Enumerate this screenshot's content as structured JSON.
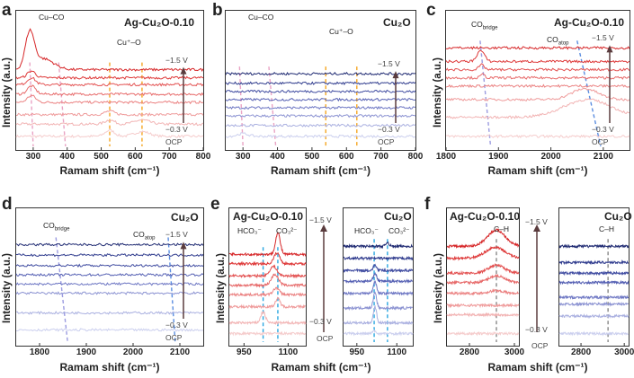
{
  "labels": {
    "ylabel": "Intensity (a.u.)",
    "xlabel": "Ramam shift (cm⁻¹)",
    "top_potential": "−1.5 V",
    "bottom_potential": "−0.3 V",
    "ocp": "OCP"
  },
  "colors": {
    "red": [
      "#f5cccc",
      "#f2b4b4",
      "#ef9b9b",
      "#eb8282",
      "#e76a6a",
      "#e35151",
      "#de3a3a",
      "#d62628"
    ],
    "blue": [
      "#cbcfee",
      "#aab0e0",
      "#8c93d2",
      "#6f78c4",
      "#5661b4",
      "#424ea2",
      "#303c8e",
      "#1f2a72"
    ],
    "arrow": "#5a3c3e"
  },
  "chart_data": [
    {
      "id": "a",
      "letter": "a",
      "type": "line",
      "title": "Ag-Cu₂O-0.10",
      "xlim": [
        250,
        800
      ],
      "ylim": [
        0,
        9
      ],
      "xticks": [
        300,
        400,
        500,
        600,
        700,
        800
      ],
      "palette": "red",
      "annotations": [
        {
          "main": "Cu–CO",
          "sub": ""
        },
        {
          "main": "Cu⁺–O",
          "sub": ""
        }
      ],
      "guides": [
        {
          "top": 290,
          "bottom": 300,
          "color": "#e9a3c4"
        },
        {
          "top": 375,
          "bottom": 395,
          "color": "#e9a3c4"
        },
        {
          "top": 525,
          "bottom": 525,
          "color": "#f5a623"
        },
        {
          "top": 620,
          "bottom": 620,
          "color": "#f5a623"
        }
      ],
      "series": [
        {
          "level": 1.0,
          "peaks": [
            [
              525,
              0.45,
              14
            ],
            [
              620,
              0.35,
              22
            ]
          ]
        },
        {
          "level": 1.9,
          "peaks": [
            [
              525,
              0.3,
              14
            ],
            [
              620,
              0.3,
              22
            ]
          ]
        },
        {
          "level": 2.6,
          "peaks": [
            [
              525,
              0.25,
              14
            ]
          ]
        },
        {
          "level": 3.5,
          "peaks": [
            [
              295,
              0.5,
              12
            ]
          ]
        },
        {
          "level": 4.1,
          "peaks": [
            [
              295,
              0.6,
              12
            ]
          ]
        },
        {
          "level": 4.8,
          "peaks": [
            [
              295,
              0.5,
              12
            ]
          ]
        },
        {
          "level": 5.3,
          "peaks": [
            [
              295,
              0.5,
              12
            ]
          ]
        },
        {
          "level": 5.9,
          "peaks": [
            [
              290,
              2.6,
              13
            ],
            [
              330,
              0.8,
              30
            ]
          ]
        }
      ]
    },
    {
      "id": "b",
      "letter": "b",
      "type": "line",
      "title": "Cu₂O",
      "xlim": [
        250,
        800
      ],
      "ylim": [
        0,
        9
      ],
      "xticks": [
        300,
        400,
        500,
        600,
        700,
        800
      ],
      "palette": "blue",
      "annotations": [
        {
          "main": "Cu–CO",
          "sub": ""
        },
        {
          "main": "Cu⁺–O",
          "sub": ""
        }
      ],
      "guides": [
        {
          "top": 290,
          "bottom": 300,
          "color": "#e9a3c4"
        },
        {
          "top": 375,
          "bottom": 395,
          "color": "#e9a3c4"
        },
        {
          "top": 540,
          "bottom": 540,
          "color": "#f5a623"
        },
        {
          "top": 630,
          "bottom": 630,
          "color": "#f5a623"
        }
      ],
      "series": [
        {
          "level": 1.0,
          "peaks": [
            [
              300,
              0.2,
              15
            ]
          ]
        },
        {
          "level": 1.8,
          "peaks": []
        },
        {
          "level": 2.5,
          "peaks": []
        },
        {
          "level": 3.1,
          "peaks": []
        },
        {
          "level": 3.7,
          "peaks": []
        },
        {
          "level": 4.3,
          "peaks": []
        },
        {
          "level": 4.9,
          "peaks": []
        },
        {
          "level": 5.6,
          "peaks": []
        }
      ]
    },
    {
      "id": "c",
      "letter": "c",
      "type": "line",
      "title": "Ag-Cu₂O-0.10",
      "xlim": [
        1800,
        2150
      ],
      "ylim": [
        0,
        9
      ],
      "xticks": [
        1800,
        1900,
        2000,
        2100
      ],
      "palette": "red",
      "annotations": [
        {
          "main": "CO",
          "sub": "bridge"
        },
        {
          "main": "CO",
          "sub": "atop"
        }
      ],
      "guides": [
        {
          "top": 1865,
          "bottom": 1885,
          "color": "#9b9be0"
        },
        {
          "top": 2050,
          "bottom": 2095,
          "color": "#5b8de0"
        }
      ],
      "series": [
        {
          "level": 1.0,
          "peaks": []
        },
        {
          "level": 2.4,
          "peaks": [
            [
              2070,
              1.3,
              45
            ]
          ]
        },
        {
          "level": 3.7,
          "peaks": [
            [
              2065,
              0.8,
              25
            ]
          ]
        },
        {
          "level": 4.7,
          "peaks": []
        },
        {
          "level": 5.3,
          "peaks": [
            [
              1870,
              0.25,
              4
            ]
          ]
        },
        {
          "level": 5.9,
          "peaks": [
            [
              1868,
              0.35,
              5
            ]
          ]
        },
        {
          "level": 6.5,
          "peaks": [
            [
              1866,
              0.8,
              7
            ]
          ]
        },
        {
          "level": 7.5,
          "peaks": []
        }
      ]
    },
    {
      "id": "d",
      "letter": "d",
      "type": "line",
      "title": "Cu₂O",
      "xlim": [
        1750,
        2150
      ],
      "ylim": [
        0,
        9
      ],
      "xticks": [
        1800,
        1900,
        2000,
        2100
      ],
      "palette": "blue",
      "annotations": [
        {
          "main": "CO",
          "sub": "bridge"
        },
        {
          "main": "CO",
          "sub": "atop"
        }
      ],
      "guides": [
        {
          "top": 1835,
          "bottom": 1860,
          "color": "#9b9be0"
        },
        {
          "top": 2075,
          "bottom": 2090,
          "color": "#5b8de0"
        }
      ],
      "series": [
        {
          "level": 1.2,
          "peaks": []
        },
        {
          "level": 2.5,
          "peaks": []
        },
        {
          "level": 4.0,
          "peaks": []
        },
        {
          "level": 4.7,
          "peaks": []
        },
        {
          "level": 5.4,
          "peaks": []
        },
        {
          "level": 6.1,
          "peaks": []
        },
        {
          "level": 6.9,
          "peaks": []
        },
        {
          "level": 7.7,
          "peaks": []
        }
      ]
    },
    {
      "id": "e1",
      "letter": "e",
      "type": "line",
      "title": "Ag-Cu₂O-0.10",
      "xlim": [
        900,
        1160
      ],
      "ylim": [
        0,
        9
      ],
      "xticks": [
        950,
        1100
      ],
      "palette": "red",
      "annotations": [
        {
          "main": "HCO₃⁻",
          "sub": ""
        },
        {
          "main": "CO₃²⁻",
          "sub": ""
        }
      ],
      "guides": [
        {
          "top": 1015,
          "bottom": 1015,
          "color": "#2aa6e0"
        },
        {
          "top": 1065,
          "bottom": 1065,
          "color": "#2aa6e0"
        }
      ],
      "series": [
        {
          "level": 0.9,
          "peaks": []
        },
        {
          "level": 1.7,
          "peaks": [
            [
              1015,
              0.8,
              8
            ]
          ]
        },
        {
          "level": 2.9,
          "peaks": [
            [
              1065,
              0.6,
              8
            ]
          ]
        },
        {
          "level": 3.8,
          "peaks": [
            [
              1060,
              0.5,
              10
            ]
          ]
        },
        {
          "level": 4.5,
          "peaks": [
            [
              1055,
              0.8,
              12
            ]
          ]
        },
        {
          "level": 5.2,
          "peaks": [
            [
              1050,
              0.7,
              12
            ]
          ]
        },
        {
          "level": 6.1,
          "peaks": [
            [
              1062,
              0.8,
              10
            ]
          ]
        },
        {
          "level": 6.8,
          "peaks": [
            [
              1065,
              1.6,
              8
            ]
          ]
        }
      ]
    },
    {
      "id": "e2",
      "letter": "",
      "type": "line",
      "title": "Cu₂O",
      "xlim": [
        900,
        1160
      ],
      "ylim": [
        0,
        9
      ],
      "xticks": [
        950,
        1100
      ],
      "palette": "blue",
      "annotations": [
        {
          "main": "HCO₃⁻",
          "sub": ""
        },
        {
          "main": "CO₃²⁻",
          "sub": ""
        }
      ],
      "guides": [
        {
          "top": 1015,
          "bottom": 1015,
          "color": "#2aa6e0"
        },
        {
          "top": 1065,
          "bottom": 1065,
          "color": "#2aa6e0"
        }
      ],
      "series": [
        {
          "level": 0.9,
          "peaks": [
            [
              1015,
              0.2,
              6
            ]
          ]
        },
        {
          "level": 1.7,
          "peaks": [
            [
              1018,
              1.2,
              6
            ]
          ]
        },
        {
          "level": 2.8,
          "peaks": [
            [
              1018,
              1.2,
              6
            ]
          ]
        },
        {
          "level": 3.9,
          "peaks": [
            [
              1018,
              0.9,
              6
            ]
          ]
        },
        {
          "level": 4.8,
          "peaks": [
            [
              1018,
              0.6,
              6
            ]
          ]
        },
        {
          "level": 5.6,
          "peaks": [
            [
              1018,
              0.4,
              6
            ]
          ]
        },
        {
          "level": 6.5,
          "peaks": []
        },
        {
          "level": 7.4,
          "peaks": [
            [
              1065,
              0.3,
              6
            ]
          ]
        }
      ]
    },
    {
      "id": "f1",
      "letter": "f",
      "type": "line",
      "title": "Ag-Cu₂O-0.10",
      "xlim": [
        2700,
        3020
      ],
      "ylim": [
        0,
        9
      ],
      "xticks": [
        2800,
        3000
      ],
      "palette": "red",
      "annotations": [
        {
          "main": "C–H",
          "sub": ""
        }
      ],
      "guides": [
        {
          "top": 2920,
          "bottom": 2920,
          "color": "#888888"
        }
      ],
      "series": [
        {
          "level": 0.9,
          "peaks": []
        },
        {
          "level": 2.3,
          "peaks": []
        },
        {
          "level": 3.0,
          "peaks": []
        },
        {
          "level": 3.9,
          "peaks": [
            [
              2920,
              0.2,
              30
            ]
          ]
        },
        {
          "level": 4.7,
          "peaks": [
            [
              2920,
              0.5,
              35
            ]
          ]
        },
        {
          "level": 5.4,
          "peaks": [
            [
              2920,
              0.6,
              35
            ]
          ]
        },
        {
          "level": 6.5,
          "peaks": [
            [
              2915,
              0.8,
              45
            ]
          ]
        },
        {
          "level": 7.4,
          "peaks": [
            [
              2920,
              1.2,
              40
            ]
          ]
        }
      ]
    },
    {
      "id": "f2",
      "letter": "",
      "type": "line",
      "title": "Cu₂O",
      "xlim": [
        2700,
        3020
      ],
      "ylim": [
        0,
        9
      ],
      "xticks": [
        2800,
        3000
      ],
      "palette": "blue",
      "annotations": [
        {
          "main": "C–H",
          "sub": ""
        }
      ],
      "guides": [
        {
          "top": 2925,
          "bottom": 2925,
          "color": "#888888"
        }
      ],
      "series": [
        {
          "level": 0.9,
          "peaks": []
        },
        {
          "level": 2.2,
          "peaks": []
        },
        {
          "level": 3.1,
          "peaks": []
        },
        {
          "level": 3.6,
          "peaks": []
        },
        {
          "level": 4.7,
          "peaks": []
        },
        {
          "level": 5.4,
          "peaks": []
        },
        {
          "level": 6.2,
          "peaks": []
        },
        {
          "level": 7.4,
          "peaks": []
        }
      ]
    }
  ]
}
